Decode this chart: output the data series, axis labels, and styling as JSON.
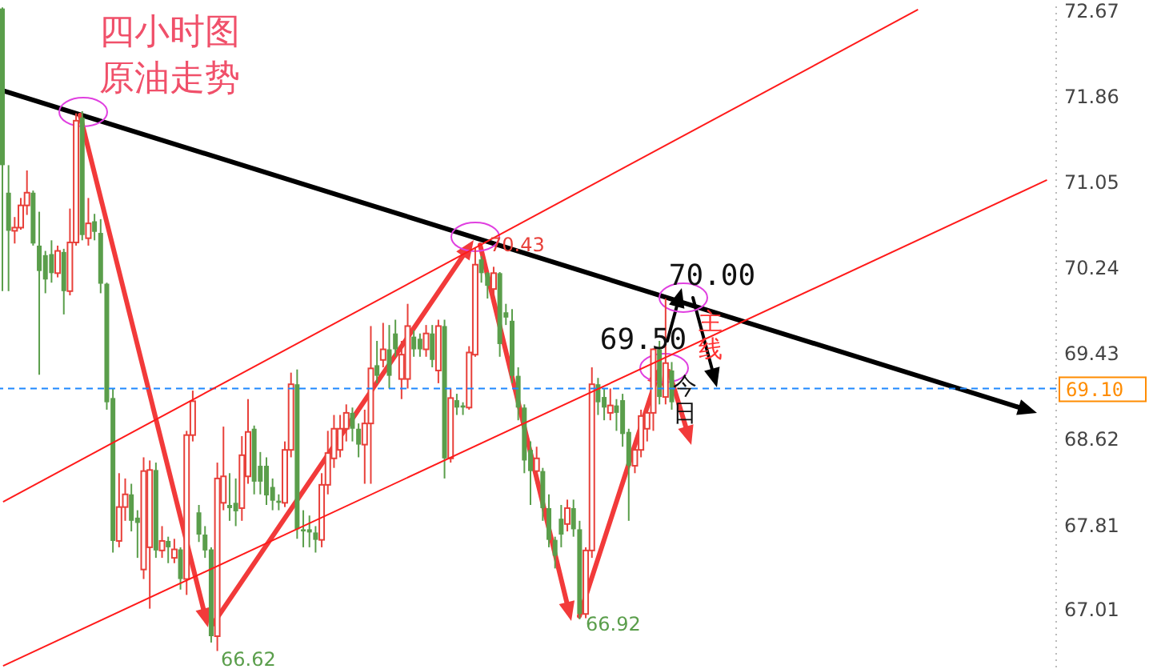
{
  "chart_data": {
    "type": "candlestick",
    "title": "四小时图原油走势",
    "ylim": [
      66.45,
      72.71
    ],
    "yticks": [
      67.01,
      67.81,
      68.62,
      69.43,
      70.24,
      71.05,
      71.86,
      72.67
    ],
    "tick_labels": "y",
    "categories": [
      null,
      null,
      null,
      null,
      null,
      null,
      null,
      null,
      null,
      null,
      null,
      null,
      null,
      null,
      null,
      null,
      null,
      null,
      null,
      null,
      null,
      null,
      null,
      null,
      null,
      null,
      null,
      null,
      null,
      null,
      null,
      null,
      null,
      null,
      null,
      null,
      null,
      null,
      null,
      null,
      null,
      null,
      null,
      null,
      null,
      null,
      null,
      null,
      null,
      null,
      null,
      null,
      null,
      null,
      null,
      null,
      null,
      null,
      null,
      null,
      null,
      null,
      null,
      null,
      null,
      null,
      null,
      null,
      null,
      null,
      null,
      null,
      null,
      null,
      null,
      null,
      null,
      null,
      null,
      null,
      null,
      null,
      null,
      null,
      null,
      null,
      null,
      null,
      null,
      null,
      null,
      null,
      null,
      null,
      null,
      null,
      null,
      null,
      null,
      null,
      null,
      null,
      null,
      null,
      null,
      null,
      null,
      null,
      null,
      null,
      null,
      null,
      null,
      null,
      null,
      null,
      null,
      null,
      null,
      null,
      null,
      null,
      null,
      null,
      null,
      null,
      null,
      null,
      null,
      null,
      null,
      null,
      null,
      null,
      null,
      null,
      null,
      null,
      null,
      null,
      null,
      null,
      null,
      null,
      null,
      null,
      null,
      null,
      null,
      null,
      null,
      null,
      null,
      null,
      null,
      null,
      null,
      null,
      null,
      null,
      null,
      null,
      null,
      null,
      null,
      null,
      null,
      null,
      null,
      null,
      null,
      null
    ],
    "ohlc": [
      [
        72.69,
        72.7,
        70.02,
        71.21
      ],
      [
        70.95,
        71.21,
        70.02,
        70.59
      ],
      [
        70.59,
        70.72,
        70.47,
        70.62
      ],
      [
        70.62,
        70.9,
        70.6,
        70.83
      ],
      [
        70.83,
        71.16,
        70.74,
        70.95
      ],
      [
        70.95,
        70.97,
        70.45,
        70.47
      ],
      [
        70.45,
        70.77,
        69.23,
        70.21
      ],
      [
        70.36,
        70.4,
        70.0,
        70.13
      ],
      [
        70.37,
        70.5,
        70.1,
        70.19
      ],
      [
        70.19,
        70.45,
        70.15,
        70.4
      ],
      [
        70.39,
        70.42,
        69.8,
        70.02
      ],
      [
        70.02,
        70.8,
        69.98,
        70.48
      ],
      [
        70.48,
        71.7,
        70.45,
        71.63
      ],
      [
        71.66,
        71.72,
        70.5,
        70.55
      ],
      [
        70.52,
        70.9,
        70.45,
        70.66
      ],
      [
        70.68,
        70.75,
        70.5,
        70.58
      ],
      [
        70.57,
        70.7,
        70.0,
        70.09
      ],
      [
        70.09,
        70.1,
        68.9,
        68.97
      ],
      [
        69.01,
        69.1,
        67.55,
        67.66
      ],
      [
        67.66,
        68.3,
        67.6,
        67.98
      ],
      [
        67.98,
        68.25,
        67.85,
        68.1
      ],
      [
        68.1,
        68.2,
        67.75,
        67.85
      ],
      [
        67.88,
        67.95,
        67.5,
        67.83
      ],
      [
        67.39,
        68.45,
        67.3,
        68.32
      ],
      [
        67.6,
        68.42,
        67.02,
        68.33
      ],
      [
        68.33,
        68.4,
        67.5,
        67.57
      ],
      [
        67.57,
        67.8,
        67.5,
        67.66
      ],
      [
        67.66,
        67.7,
        67.45,
        67.6
      ],
      [
        67.5,
        67.68,
        67.45,
        67.58
      ],
      [
        67.58,
        67.6,
        67.2,
        67.3
      ],
      [
        67.3,
        68.7,
        67.15,
        68.66
      ],
      [
        68.66,
        69.08,
        68.6,
        68.98
      ],
      [
        67.93,
        68.0,
        67.65,
        67.72
      ],
      [
        67.72,
        67.8,
        67.5,
        67.57
      ],
      [
        67.58,
        67.6,
        66.7,
        66.76
      ],
      [
        66.76,
        68.4,
        66.62,
        68.25
      ],
      [
        68.02,
        68.74,
        67.95,
        68.27
      ],
      [
        68.0,
        68.3,
        67.85,
        67.97
      ],
      [
        68.02,
        68.25,
        67.8,
        67.94
      ],
      [
        67.97,
        68.65,
        67.85,
        68.47
      ],
      [
        68.27,
        69.0,
        68.2,
        68.69
      ],
      [
        68.72,
        68.75,
        68.1,
        68.22
      ],
      [
        68.37,
        68.5,
        68.1,
        68.22
      ],
      [
        68.37,
        68.45,
        68.0,
        68.09
      ],
      [
        68.17,
        68.25,
        67.95,
        68.04
      ],
      [
        68.04,
        68.1,
        67.95,
        68.02
      ],
      [
        68.02,
        68.6,
        67.98,
        68.52
      ],
      [
        68.52,
        69.25,
        68.45,
        69.14
      ],
      [
        69.14,
        69.28,
        67.68,
        67.77
      ],
      [
        67.77,
        67.95,
        67.6,
        67.75
      ],
      [
        67.77,
        67.9,
        67.6,
        67.74
      ],
      [
        67.74,
        67.8,
        67.55,
        67.67
      ],
      [
        67.67,
        68.3,
        67.6,
        68.19
      ],
      [
        68.19,
        68.7,
        68.1,
        68.49
      ],
      [
        68.44,
        68.85,
        68.35,
        68.72
      ],
      [
        68.52,
        68.85,
        68.45,
        68.72
      ],
      [
        68.72,
        68.95,
        68.6,
        68.87
      ],
      [
        68.87,
        68.92,
        68.6,
        68.72
      ],
      [
        68.72,
        68.77,
        68.45,
        68.57
      ],
      [
        68.57,
        68.9,
        68.2,
        68.77
      ],
      [
        68.77,
        69.69,
        68.2,
        69.29
      ],
      [
        69.32,
        69.55,
        69.15,
        69.22
      ],
      [
        69.37,
        69.72,
        69.3,
        69.47
      ],
      [
        69.47,
        69.7,
        69.1,
        69.22
      ],
      [
        69.62,
        69.75,
        69.4,
        69.47
      ],
      [
        69.19,
        69.55,
        69.0,
        69.42
      ],
      [
        69.19,
        69.9,
        69.1,
        69.69
      ],
      [
        69.59,
        69.65,
        69.4,
        69.47
      ],
      [
        69.57,
        69.62,
        69.4,
        69.47
      ],
      [
        69.47,
        69.7,
        69.4,
        69.62
      ],
      [
        69.62,
        69.7,
        69.3,
        69.37
      ],
      [
        69.27,
        69.75,
        69.15,
        69.69
      ],
      [
        69.69,
        69.75,
        68.25,
        68.44
      ],
      [
        68.44,
        69.1,
        68.4,
        69.01
      ],
      [
        68.99,
        69.05,
        68.85,
        68.92
      ],
      [
        68.94,
        68.97,
        68.85,
        68.92
      ],
      [
        68.92,
        69.5,
        68.9,
        69.44
      ],
      [
        69.42,
        70.43,
        69.4,
        70.27
      ],
      [
        70.32,
        70.35,
        70.1,
        70.19
      ],
      [
        70.19,
        70.2,
        69.95,
        70.07
      ],
      [
        70.04,
        70.25,
        69.95,
        70.19
      ],
      [
        70.19,
        70.2,
        69.4,
        69.52
      ],
      [
        69.82,
        69.9,
        69.7,
        69.77
      ],
      [
        69.74,
        69.85,
        69.15,
        69.22
      ],
      [
        69.22,
        69.3,
        68.8,
        68.92
      ],
      [
        68.92,
        68.95,
        68.3,
        68.42
      ],
      [
        68.52,
        68.6,
        68.0,
        68.32
      ],
      [
        68.32,
        68.55,
        68.2,
        68.44
      ],
      [
        68.32,
        68.35,
        67.85,
        67.97
      ],
      [
        67.97,
        68.1,
        67.6,
        67.67
      ],
      [
        67.67,
        67.7,
        67.4,
        67.52
      ],
      [
        67.87,
        68.0,
        67.6,
        67.72
      ],
      [
        67.82,
        68.05,
        67.75,
        67.97
      ],
      [
        67.97,
        68.05,
        67.7,
        67.77
      ],
      [
        67.77,
        67.85,
        66.92,
        66.97
      ],
      [
        66.97,
        67.6,
        66.93,
        67.57
      ],
      [
        67.57,
        69.3,
        67.5,
        69.14
      ],
      [
        69.14,
        69.2,
        68.85,
        68.97
      ],
      [
        69.02,
        69.1,
        68.8,
        68.92
      ],
      [
        68.87,
        69.1,
        68.8,
        68.94
      ],
      [
        68.94,
        69.0,
        68.7,
        68.87
      ],
      [
        68.99,
        69.05,
        68.55,
        68.67
      ],
      [
        68.69,
        68.72,
        67.85,
        68.37
      ],
      [
        68.37,
        68.55,
        68.3,
        68.52
      ],
      [
        68.52,
        68.9,
        68.45,
        68.84
      ],
      [
        68.72,
        68.95,
        68.6,
        68.87
      ],
      [
        68.87,
        69.48,
        68.7,
        69.47
      ],
      [
        69.47,
        69.55,
        68.95,
        69.02
      ],
      [
        69.02,
        69.95,
        68.95,
        69.34
      ],
      [
        69.27,
        69.35,
        68.9,
        68.97
      ],
      null,
      null,
      null,
      null,
      null,
      null,
      null,
      null,
      null,
      null,
      null,
      null,
      null,
      null,
      null,
      null,
      null,
      null,
      null,
      null,
      null,
      null,
      null,
      null,
      null,
      null,
      null,
      null,
      null,
      null,
      null,
      null,
      null,
      null,
      null,
      null,
      null,
      null,
      null,
      null,
      null,
      null,
      null,
      null,
      null,
      null,
      null,
      null,
      null,
      null,
      null,
      null,
      null,
      null,
      null,
      null,
      null,
      null,
      null,
      null,
      null,
      null
    ],
    "series": [
      {
        "type": "line",
        "color": "#ff1a1a",
        "values": [
          68.03,
          null,
          null,
          null,
          null,
          null,
          null,
          null,
          null,
          null,
          null,
          null,
          null,
          null,
          null,
          null,
          null,
          null,
          null,
          null,
          null,
          null,
          null,
          null,
          null,
          null,
          null,
          null,
          null,
          null,
          null,
          null,
          null,
          null,
          null,
          null,
          null,
          null,
          null,
          null,
          null,
          null,
          null,
          null,
          null,
          null,
          null,
          null,
          null,
          null,
          null,
          null,
          null,
          null,
          null,
          null,
          null,
          null,
          null,
          null,
          null,
          null,
          null,
          null,
          null,
          null,
          null,
          null,
          null,
          null,
          null,
          null,
          null,
          null,
          null,
          null,
          null,
          null,
          null,
          null,
          null,
          null,
          null,
          null,
          null,
          null,
          null,
          null,
          null,
          null,
          null,
          null,
          null,
          null,
          null,
          null,
          null,
          null,
          null,
          null,
          null,
          null,
          null,
          null,
          null,
          null,
          null,
          null,
          null,
          null,
          null,
          null,
          null,
          null,
          null,
          null,
          null,
          null,
          null,
          null,
          null,
          null,
          null,
          null,
          null,
          null,
          null,
          null,
          null,
          null,
          null,
          null,
          null,
          null,
          null,
          null,
          null,
          null,
          null,
          null,
          null,
          null,
          null,
          null,
          null,
          null,
          null,
          null,
          null,
          72.68,
          null,
          null,
          null,
          null,
          null,
          null,
          null,
          null,
          null,
          null,
          null,
          null,
          null,
          null,
          null,
          null,
          null,
          null,
          null,
          null,
          null,
          null
        ]
      },
      {
        "type": "line",
        "color": "#ff1a1a",
        "values": [
          66.48,
          null,
          null,
          null,
          null,
          null,
          null,
          null,
          null,
          null,
          null,
          null,
          null,
          null,
          null,
          null,
          null,
          null,
          null,
          null,
          null,
          null,
          null,
          null,
          null,
          null,
          null,
          null,
          null,
          null,
          null,
          null,
          null,
          null,
          null,
          null,
          null,
          null,
          null,
          null,
          null,
          null,
          null,
          null,
          null,
          null,
          null,
          null,
          null,
          null,
          null,
          null,
          null,
          null,
          null,
          null,
          null,
          null,
          null,
          null,
          null,
          null,
          null,
          null,
          null,
          null,
          null,
          null,
          null,
          null,
          null,
          null,
          null,
          null,
          null,
          null,
          null,
          null,
          null,
          null,
          null,
          null,
          null,
          null,
          null,
          null,
          null,
          null,
          null,
          null,
          null,
          null,
          null,
          null,
          null,
          null,
          null,
          null,
          null,
          null,
          null,
          null,
          null,
          null,
          null,
          null,
          null,
          null,
          null,
          null,
          null,
          null,
          null,
          null,
          null,
          null,
          null,
          null,
          null,
          null,
          null,
          null,
          null,
          null,
          null,
          null,
          null,
          null,
          null,
          null,
          null,
          null,
          null,
          null,
          null,
          null,
          null,
          null,
          null,
          null,
          null,
          null,
          null,
          null,
          null,
          null,
          null,
          null,
          null,
          null,
          null,
          null,
          null,
          null,
          null,
          null,
          null,
          null,
          null,
          null,
          null,
          null,
          null,
          null,
          null,
          null,
          null,
          null,
          null,
          null,
          71.07,
          null
        ]
      }
    ],
    "ref_lines": [
      {
        "axis": "y",
        "value": 69.1,
        "label": "69.10",
        "color": "#1e88ff",
        "line_style": "dashed"
      }
    ],
    "annotations": [
      "70.43",
      "66.62",
      "66.92",
      "69.50",
      "70.00",
      "主线",
      "今日"
    ]
  }
}
